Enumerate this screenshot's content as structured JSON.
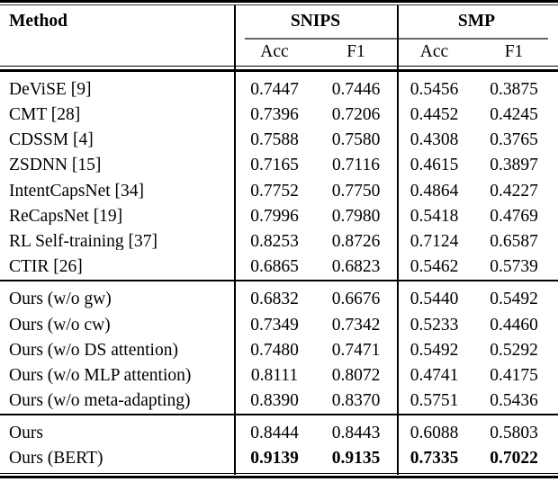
{
  "header": {
    "method_label": "Method",
    "groups": [
      {
        "label": "SNIPS",
        "subcolumns": [
          "Acc",
          "F1"
        ]
      },
      {
        "label": "SMP",
        "subcolumns": [
          "Acc",
          "F1"
        ]
      }
    ]
  },
  "sections": [
    {
      "name": "baselines",
      "rows": [
        {
          "method": "DeViSE [9]",
          "values": [
            "0.7447",
            "0.7446",
            "0.5456",
            "0.3875"
          ],
          "bold_values": false
        },
        {
          "method": "CMT [28]",
          "values": [
            "0.7396",
            "0.7206",
            "0.4452",
            "0.4245"
          ],
          "bold_values": false
        },
        {
          "method": "CDSSM [4]",
          "values": [
            "0.7588",
            "0.7580",
            "0.4308",
            "0.3765"
          ],
          "bold_values": false
        },
        {
          "method": "ZSDNN [15]",
          "values": [
            "0.7165",
            "0.7116",
            "0.4615",
            "0.3897"
          ],
          "bold_values": false
        },
        {
          "method": "IntentCapsNet [34]",
          "values": [
            "0.7752",
            "0.7750",
            "0.4864",
            "0.4227"
          ],
          "bold_values": false
        },
        {
          "method": "ReCapsNet [19]",
          "values": [
            "0.7996",
            "0.7980",
            "0.5418",
            "0.4769"
          ],
          "bold_values": false
        },
        {
          "method": "RL Self-training [37]",
          "values": [
            "0.8253",
            "0.8726",
            "0.7124",
            "0.6587"
          ],
          "bold_values": false
        },
        {
          "method": "CTIR [26]",
          "values": [
            "0.6865",
            "0.6823",
            "0.5462",
            "0.5739"
          ],
          "bold_values": false
        }
      ]
    },
    {
      "name": "ablations",
      "rows": [
        {
          "method": "Ours (w/o gw)",
          "values": [
            "0.6832",
            "0.6676",
            "0.5440",
            "0.5492"
          ],
          "bold_values": false
        },
        {
          "method": "Ours (w/o cw)",
          "values": [
            "0.7349",
            "0.7342",
            "0.5233",
            "0.4460"
          ],
          "bold_values": false
        },
        {
          "method": "Ours (w/o DS attention)",
          "values": [
            "0.7480",
            "0.7471",
            "0.5492",
            "0.5292"
          ],
          "bold_values": false
        },
        {
          "method": "Ours (w/o MLP attention)",
          "values": [
            "0.8111",
            "0.8072",
            "0.4741",
            "0.4175"
          ],
          "bold_values": false
        },
        {
          "method": "Ours (w/o meta-adapting)",
          "values": [
            "0.8390",
            "0.8370",
            "0.5751",
            "0.5436"
          ],
          "bold_values": false
        }
      ]
    },
    {
      "name": "ours",
      "rows": [
        {
          "method": "Ours",
          "values": [
            "0.8444",
            "0.8443",
            "0.6088",
            "0.5803"
          ],
          "bold_values": false
        },
        {
          "method": "Ours (BERT)",
          "values": [
            "0.9139",
            "0.9135",
            "0.7335",
            "0.7022"
          ],
          "bold_values": true
        }
      ]
    }
  ],
  "colors": {
    "background": "#ffffff",
    "text": "#000000",
    "rule": "#000000",
    "cmidrule": "#666666"
  }
}
